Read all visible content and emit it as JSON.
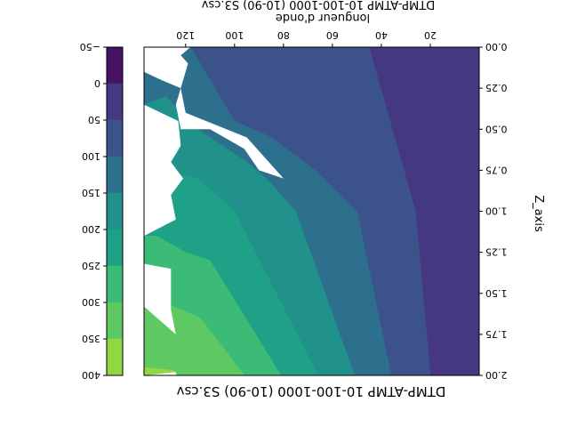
{
  "chart_data": {
    "type": "contourf",
    "title": "DTMP-ATMP 10-100-1000 (10-90) S3.csv",
    "top_label": "DTMP-ATMP 10-100-1000 (10-90) S3.csv",
    "xlabel": "longueur d'onde",
    "ylabel": "Z_axis",
    "orientation": "rotated 180 degrees",
    "xlim": [
      0,
      137
    ],
    "ylim": [
      0.0,
      2.0
    ],
    "x_ticks": [
      20,
      40,
      60,
      80,
      100,
      120
    ],
    "x_tick_labels": [
      "20",
      "40",
      "60",
      "80",
      "100",
      "120"
    ],
    "y_ticks": [
      0.0,
      0.25,
      0.5,
      0.75,
      1.0,
      1.25,
      1.5,
      1.75,
      2.0
    ],
    "y_tick_labels": [
      "0.00",
      "0.25",
      "0.50",
      "0.75",
      "1.00",
      "1.25",
      "1.50",
      "1.75",
      "2.00"
    ],
    "grid": false,
    "colorbar": {
      "levels": [
        -50,
        0,
        50,
        100,
        150,
        200,
        250,
        300,
        350,
        400
      ],
      "tick_labels": [
        "−50",
        "0",
        "50",
        "100",
        "150",
        "200",
        "250",
        "300",
        "350",
        "400"
      ],
      "colors": [
        "#471164",
        "#453781",
        "#3b528b",
        "#2d708e",
        "#21918c",
        "#1fa187",
        "#3bbb75",
        "#5ec962",
        "#91d743",
        "#d0e11c"
      ]
    },
    "regions": [
      {
        "band": "0 to 50",
        "color": "#453781",
        "boundary": [
          [
            137,
            0.0
          ],
          [
            137,
            2.0
          ],
          [
            0,
            2.0
          ],
          [
            0,
            0.0
          ]
        ]
      },
      {
        "band": "50 to 100",
        "color": "#3b528b",
        "boundary": [
          [
            137,
            0.0
          ],
          [
            137,
            2.0
          ],
          [
            20,
            2.0
          ],
          [
            26,
            1.0
          ],
          [
            45,
            0.0
          ]
        ]
      },
      {
        "band": "100 to 150",
        "color": "#2d708e",
        "boundary": [
          [
            137,
            0.0
          ],
          [
            137,
            2.0
          ],
          [
            36,
            2.0
          ],
          [
            50,
            1.0
          ],
          [
            67,
            0.75
          ],
          [
            85,
            0.55
          ],
          [
            100,
            0.45
          ],
          [
            118,
            0.0
          ]
        ]
      },
      {
        "band": "150 to 200",
        "color": "#21918c",
        "boundary": [
          [
            137,
            0.0
          ],
          [
            137,
            2.0
          ],
          [
            51,
            2.0
          ],
          [
            75,
            1.0
          ],
          [
            87,
            0.8
          ],
          [
            95,
            0.7
          ],
          [
            115,
            0.5
          ],
          [
            120,
            0.4
          ],
          [
            125,
            0.35
          ],
          [
            128,
            0.3
          ],
          [
            137,
            0.35
          ]
        ]
      },
      {
        "band": "200 to 250",
        "color": "#1fa187",
        "boundary": [
          [
            137,
            0.75
          ],
          [
            137,
            2.0
          ],
          [
            66,
            2.0
          ],
          [
            100,
            1.0
          ],
          [
            115,
            0.8
          ],
          [
            130,
            0.75
          ]
        ]
      },
      {
        "band": "250 to 300",
        "color": "#3bbb75",
        "boundary": [
          [
            137,
            1.15
          ],
          [
            137,
            2.0
          ],
          [
            81,
            2.0
          ],
          [
            110,
            1.3
          ],
          [
            120,
            1.25
          ],
          [
            132,
            1.15
          ]
        ]
      },
      {
        "band": "300 to 350",
        "color": "#5ec962",
        "boundary": [
          [
            137,
            1.55
          ],
          [
            137,
            2.0
          ],
          [
            96,
            2.0
          ],
          [
            114,
            1.65
          ],
          [
            130,
            1.55
          ]
        ]
      },
      {
        "band": "350 to 400",
        "color": "#91d743",
        "boundary": [
          [
            137,
            1.95
          ],
          [
            137,
            2.0
          ],
          [
            123,
            2.0
          ],
          [
            125,
            1.97
          ]
        ]
      }
    ],
    "nan_region": {
      "color": "#ffffff",
      "boundary": [
        [
          137,
          0.0
        ],
        [
          118,
          0.0
        ],
        [
          122,
          0.05
        ],
        [
          119,
          0.1
        ],
        [
          124,
          0.35
        ],
        [
          122,
          0.5
        ],
        [
          110,
          0.5
        ],
        [
          96,
          0.62
        ],
        [
          90,
          0.75
        ],
        [
          80,
          0.8
        ],
        [
          95,
          0.55
        ],
        [
          120,
          0.4
        ],
        [
          122,
          0.25
        ],
        [
          130,
          0.2
        ],
        [
          137,
          0.15
        ],
        [
          137,
          0.35
        ],
        [
          123,
          0.45
        ],
        [
          122,
          0.6
        ],
        [
          126,
          0.7
        ],
        [
          121,
          0.8
        ],
        [
          126,
          0.9
        ],
        [
          124,
          1.05
        ],
        [
          137,
          1.15
        ],
        [
          137,
          1.32
        ],
        [
          126,
          1.35
        ],
        [
          126,
          1.6
        ],
        [
          124,
          1.75
        ],
        [
          137,
          1.58
        ],
        [
          137,
          2.0
        ],
        [
          124,
          1.98
        ],
        [
          124,
          2.0
        ],
        [
          137,
          2.0
        ]
      ]
    }
  }
}
